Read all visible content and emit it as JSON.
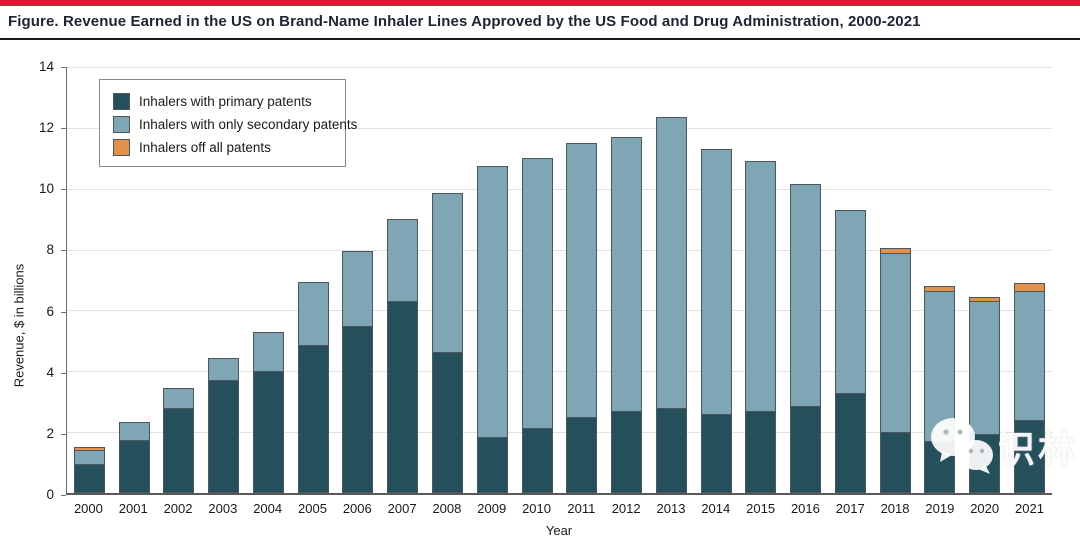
{
  "page": {
    "title": "Figure. Revenue Earned in the US on Brand-Name Inhaler Lines Approved by the US Food and Drug Administration, 2000-2021"
  },
  "colors": {
    "accent_bar": "#d41e35",
    "primary": "#254f5b",
    "secondary": "#7ea6b5",
    "off_patent": "#e0914c",
    "segment_border": "#4d565c",
    "gridline": "#e1e1e1"
  },
  "watermark": {
    "text": "识林",
    "icon": "wechat-logo-icon"
  },
  "chart_data": {
    "type": "bar",
    "stacked": true,
    "title": "Figure. Revenue Earned in the US on Brand-Name Inhaler Lines Approved by the US Food and Drug Administration, 2000-2021",
    "xlabel": "Year",
    "ylabel": "Revenue, $ in billions",
    "ylim": [
      0,
      14
    ],
    "yticks": [
      0,
      2,
      4,
      6,
      8,
      10,
      12,
      14
    ],
    "grid": true,
    "legend_position": "top-left",
    "categories": [
      "2000",
      "2001",
      "2002",
      "2003",
      "2004",
      "2005",
      "2006",
      "2007",
      "2008",
      "2009",
      "2010",
      "2011",
      "2012",
      "2013",
      "2014",
      "2015",
      "2016",
      "2017",
      "2018",
      "2019",
      "2020",
      "2021"
    ],
    "series": [
      {
        "name": "Inhalers with primary patents",
        "color_key": "primary",
        "values": [
          0.95,
          1.75,
          2.8,
          3.7,
          4.0,
          4.85,
          5.5,
          6.3,
          4.65,
          1.85,
          2.15,
          2.5,
          2.7,
          2.8,
          2.6,
          2.7,
          2.85,
          3.3,
          2.0,
          1.7,
          1.95,
          2.4
        ]
      },
      {
        "name": "Inhalers with only secondary patents",
        "color_key": "secondary",
        "values": [
          0.45,
          0.6,
          0.65,
          0.75,
          1.3,
          2.1,
          2.45,
          2.7,
          5.2,
          8.9,
          8.85,
          9.0,
          9.0,
          9.55,
          8.7,
          8.2,
          7.3,
          6.0,
          5.9,
          4.95,
          4.35,
          4.25
        ]
      },
      {
        "name": "Inhalers off all patents",
        "color_key": "off_patent",
        "values": [
          0.1,
          0,
          0,
          0,
          0,
          0,
          0,
          0,
          0,
          0,
          0,
          0,
          0,
          0,
          0,
          0,
          0,
          0,
          0.15,
          0.15,
          0.15,
          0.25
        ]
      }
    ]
  }
}
